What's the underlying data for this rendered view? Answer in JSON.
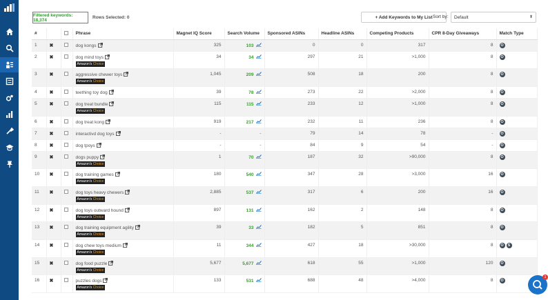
{
  "topbar": {
    "filtered_label": "Filtered keywords: 18,374",
    "rows_selected": "Rows Selected: 0",
    "add_button": "+ Add Keywords to My List",
    "sort_label": "Sort by:",
    "sort_value": "Default"
  },
  "columns": [
    "#",
    "",
    "",
    "Phrase",
    "Magnet IQ Score",
    "Search Volume",
    "Sponsored ASINs",
    "Headline ASINs",
    "Competing Products",
    "CPR 8-Day Giveaways",
    "Match Type"
  ],
  "badge": {
    "prefix": "Amazon's",
    "suffix": "Choice"
  },
  "colors": {
    "sidebar": "#0f4a82",
    "green": "#3a9c2f",
    "accent": "#1b72c9",
    "filtered_border": "#d9534f"
  },
  "rows": [
    {
      "n": "1",
      "phrase": "dog kongs",
      "choice": false,
      "iq": "325",
      "sv": "103",
      "sp": "0",
      "hl": "0",
      "cp": "317",
      "cpr": "8",
      "mt": [
        "O"
      ]
    },
    {
      "n": "2",
      "phrase": "dog mind toys",
      "choice": true,
      "iq": "34",
      "sv": "34",
      "sp": "297",
      "hl": "21",
      "cp": ">1,000",
      "cpr": "8",
      "mt": [
        "O"
      ]
    },
    {
      "n": "3",
      "phrase": "aggressive chewer toys",
      "choice": true,
      "iq": "1,045",
      "sv": "209",
      "sp": "508",
      "hl": "18",
      "cp": "200",
      "cpr": "8",
      "mt": [
        "O"
      ]
    },
    {
      "n": "4",
      "phrase": "teething toy dog",
      "choice": false,
      "iq": "39",
      "sv": "78",
      "sp": "273",
      "hl": "22",
      "cp": ">2,000",
      "cpr": "8",
      "mt": [
        "O"
      ]
    },
    {
      "n": "5",
      "phrase": "dog treat bundle",
      "choice": true,
      "iq": "115",
      "sv": "115",
      "sp": "233",
      "hl": "12",
      "cp": ">1,000",
      "cpr": "8",
      "mt": [
        "O"
      ]
    },
    {
      "n": "6",
      "phrase": "dog treat kong",
      "choice": false,
      "iq": "919",
      "sv": "217",
      "sp": "232",
      "hl": "11",
      "cp": "236",
      "cpr": "8",
      "mt": [
        "O"
      ]
    },
    {
      "n": "7",
      "phrase": "interactivd dog toys",
      "choice": false,
      "iq": "-",
      "sv": "-",
      "sp": "79",
      "hl": "14",
      "cp": "78",
      "cpr": "-",
      "mt": [
        "O"
      ]
    },
    {
      "n": "8",
      "phrase": "dog tpoys",
      "choice": false,
      "iq": "-",
      "sv": "-",
      "sp": "84",
      "hl": "9",
      "cp": "54",
      "cpr": "-",
      "mt": [
        "O"
      ]
    },
    {
      "n": "9",
      "phrase": "dogs puppy",
      "choice": true,
      "iq": "1",
      "sv": "70",
      "sp": "187",
      "hl": "32",
      "cp": ">90,000",
      "cpr": "8",
      "mt": [
        "O"
      ]
    },
    {
      "n": "10",
      "phrase": "dog training games",
      "choice": true,
      "iq": "180",
      "sv": "540",
      "sp": "347",
      "hl": "28",
      "cp": ">3,000",
      "cpr": "16",
      "mt": [
        "O"
      ]
    },
    {
      "n": "11",
      "phrase": "dog toys heavy chewers",
      "choice": true,
      "iq": "2,885",
      "sv": "537",
      "sp": "317",
      "hl": "6",
      "cp": "200",
      "cpr": "16",
      "mt": [
        "O"
      ]
    },
    {
      "n": "12",
      "phrase": "dog toys outward hound",
      "choice": true,
      "iq": "897",
      "sv": "131",
      "sp": "162",
      "hl": "2",
      "cp": "148",
      "cpr": "8",
      "mt": [
        "O"
      ]
    },
    {
      "n": "13",
      "phrase": "dog training equipment agility",
      "choice": true,
      "iq": "39",
      "sv": "33",
      "sp": "182",
      "hl": "5",
      "cp": "851",
      "cpr": "8",
      "mt": [
        "O"
      ]
    },
    {
      "n": "14",
      "phrase": "dog chew toys medium",
      "choice": true,
      "iq": "11",
      "sv": "344",
      "sp": "427",
      "hl": "18",
      "cp": ">30,000",
      "cpr": "8",
      "mt": [
        "O",
        "S"
      ]
    },
    {
      "n": "15",
      "phrase": "dog food puzzle",
      "choice": true,
      "iq": "5,677",
      "sv": "5,677",
      "sp": "618",
      "hl": "55",
      "cp": ">1,000",
      "cpr": "120",
      "mt": [
        "O"
      ]
    },
    {
      "n": "16",
      "phrase": "puzzles dogs",
      "choice": true,
      "iq": "133",
      "sv": "531",
      "sp": "688",
      "hl": "48",
      "cp": ">4,000",
      "cpr": "8",
      "mt": [
        "O"
      ]
    }
  ],
  "chat": {
    "badge": "1"
  }
}
